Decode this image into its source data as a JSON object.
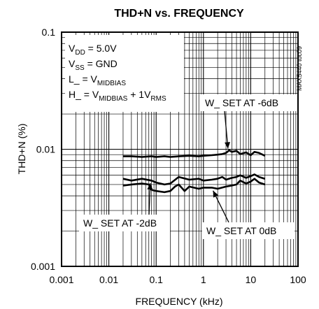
{
  "chart_data": {
    "type": "line",
    "title": "THD+N vs. FREQUENCY",
    "xlabel": "FREQUENCY (kHz)",
    "ylabel": "THD+N (%)",
    "x_scale": "log",
    "y_scale": "log",
    "xlim": [
      0.001,
      100
    ],
    "ylim": [
      0.001,
      0.1
    ],
    "x_ticks": [
      "0.001",
      "0.01",
      "0.1",
      "1",
      "10",
      "100"
    ],
    "y_ticks": [
      "0.1",
      "0.01",
      "0.001"
    ],
    "grid": true,
    "figure_code": "MAX5440 toc09",
    "conditions": [
      {
        "main": "V",
        "sub": "DD",
        "rest": " = 5.0V"
      },
      {
        "main": "V",
        "sub": "SS",
        "rest": " = GND"
      },
      {
        "main": "L_ = V",
        "sub": "MIDBIAS",
        "rest": ""
      },
      {
        "main": "H_ = V",
        "sub": "MIDBIAS",
        "rest": " + 1V",
        "sub2": "RMS"
      }
    ],
    "series": [
      {
        "name": "W_ SET AT -6dB",
        "x": [
          0.02,
          0.03,
          0.05,
          0.08,
          0.1,
          0.15,
          0.2,
          0.3,
          0.5,
          0.8,
          1,
          1.5,
          2,
          2.5,
          3,
          3.5,
          4,
          5,
          6,
          8,
          10,
          12,
          15,
          20
        ],
        "y": [
          0.0087,
          0.0087,
          0.0086,
          0.0087,
          0.0086,
          0.0087,
          0.0086,
          0.0087,
          0.0088,
          0.0087,
          0.0088,
          0.0089,
          0.009,
          0.0091,
          0.0093,
          0.0098,
          0.0095,
          0.0097,
          0.0091,
          0.0094,
          0.0089,
          0.0095,
          0.0093,
          0.0088
        ]
      },
      {
        "name": "W_ SET AT -2dB",
        "x": [
          0.02,
          0.03,
          0.05,
          0.08,
          0.1,
          0.15,
          0.2,
          0.3,
          0.5,
          0.8,
          1,
          1.5,
          2,
          2.5,
          3,
          4,
          5,
          6,
          8,
          10,
          12,
          15,
          20
        ],
        "y": [
          0.0056,
          0.0054,
          0.0056,
          0.0054,
          0.0052,
          0.005,
          0.0051,
          0.0058,
          0.0055,
          0.0056,
          0.0054,
          0.0055,
          0.0056,
          0.0058,
          0.0055,
          0.0057,
          0.0058,
          0.006,
          0.0057,
          0.0059,
          0.0061,
          0.0058,
          0.0056
        ]
      },
      {
        "name": "W_ SET AT 0dB",
        "x": [
          0.02,
          0.03,
          0.05,
          0.07,
          0.08,
          0.1,
          0.15,
          0.2,
          0.25,
          0.3,
          0.4,
          0.5,
          0.8,
          1,
          1.5,
          2,
          3,
          4,
          5,
          6,
          8,
          10,
          12,
          15,
          20
        ],
        "y": [
          0.0049,
          0.005,
          0.0051,
          0.005,
          0.0045,
          0.0044,
          0.0043,
          0.0044,
          0.0048,
          0.005,
          0.0044,
          0.0048,
          0.0046,
          0.0047,
          0.0047,
          0.0046,
          0.0048,
          0.0049,
          0.005,
          0.0054,
          0.0051,
          0.0053,
          0.0056,
          0.0052,
          0.005
        ]
      }
    ],
    "annotations": [
      {
        "label": "W_ SET AT -6dB",
        "series": "W_ SET AT -6dB"
      },
      {
        "label": "W_ SET AT -2dB",
        "series": "W_ SET AT -2dB"
      },
      {
        "label": "W_ SET AT 0dB",
        "series": "W_ SET AT 0dB"
      }
    ]
  }
}
